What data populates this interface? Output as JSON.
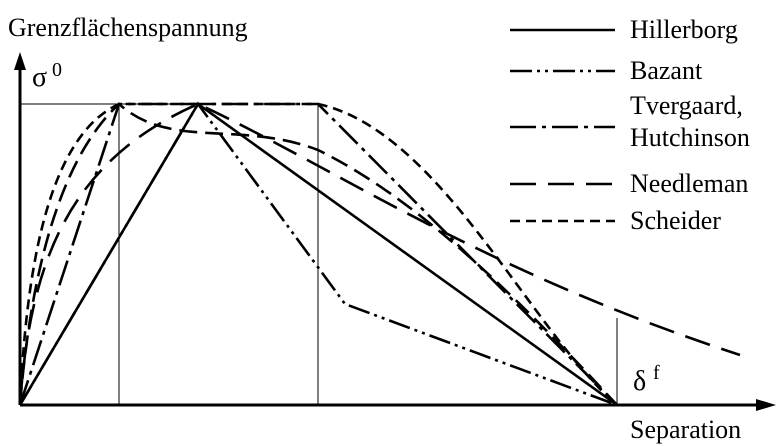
{
  "labels": {
    "y_axis": "Grenzflächenspannung",
    "x_axis": "Separation",
    "sigma_symbol": "σ",
    "sigma_sup": "0",
    "delta_symbol": "δ",
    "delta_sup": "f"
  },
  "legend": [
    {
      "id": "hillerborg",
      "text": "Hillerborg"
    },
    {
      "id": "bazant",
      "text": "Bazant"
    },
    {
      "id": "tvergaard",
      "line1": "Tvergaard,",
      "line2": "Hutchinson"
    },
    {
      "id": "needleman",
      "text": "Needleman"
    },
    {
      "id": "scheider",
      "text": "Scheider"
    }
  ]
}
